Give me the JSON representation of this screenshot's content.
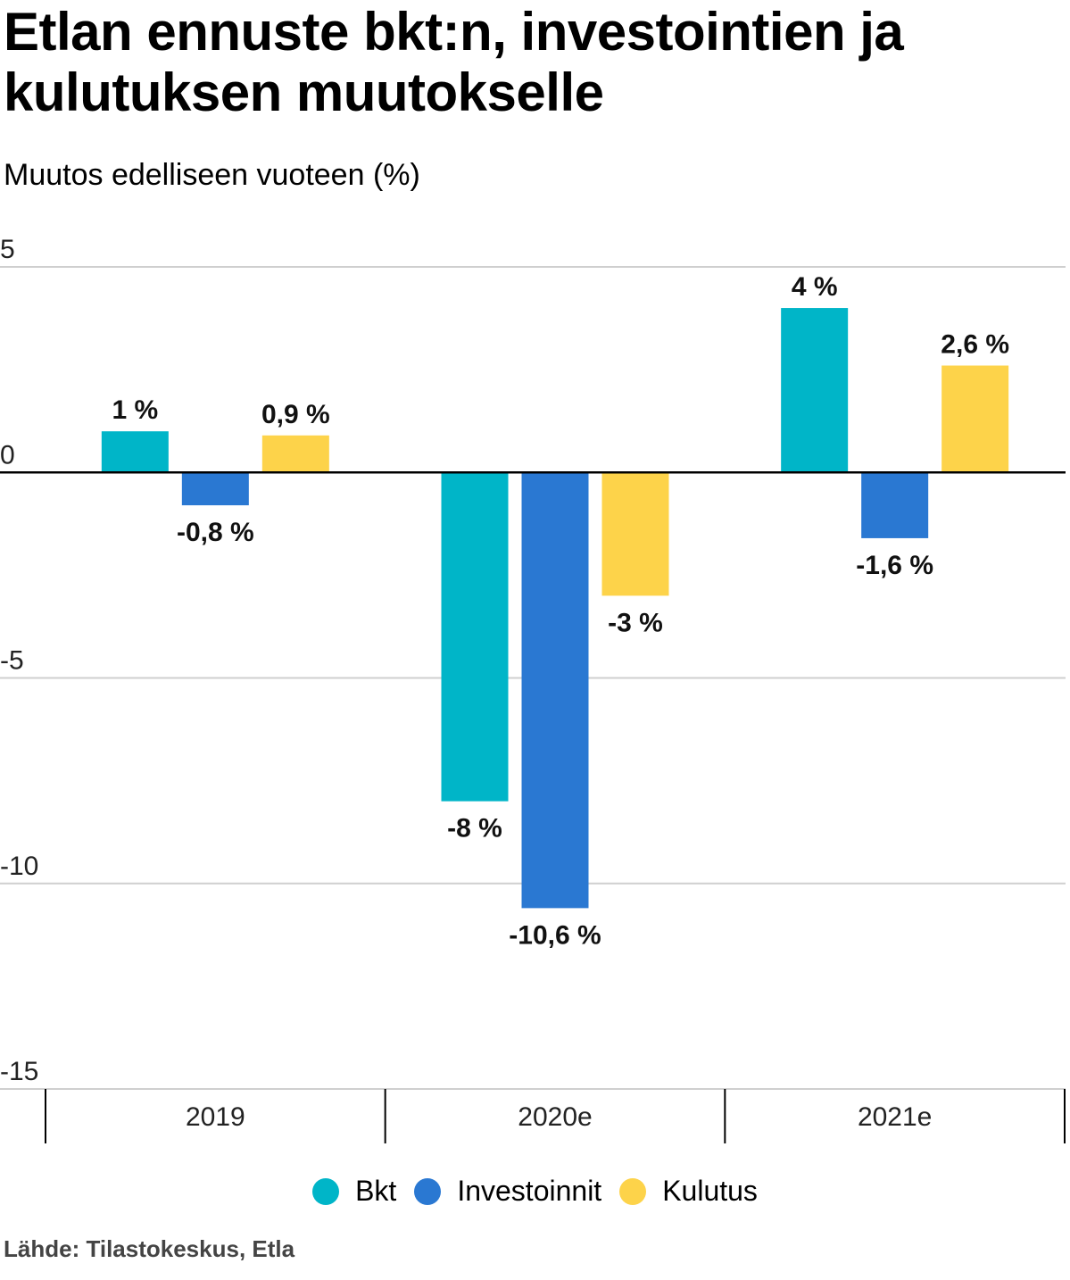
{
  "title": "Etlan ennuste bkt:n, investointien ja kulutuksen muutokselle",
  "subtitle": "Muutos edelliseen vuoteen (%)",
  "source": "Lähde: Tilastokeskus, Etla",
  "chart_data": {
    "type": "bar",
    "title": "Etlan ennuste bkt:n, investointien ja kulutuksen muutokselle",
    "ylabel": "Muutos edelliseen vuoteen (%)",
    "xlabel": "",
    "categories": [
      "2019",
      "2020e",
      "2021e"
    ],
    "ylim": [
      -15,
      5
    ],
    "yticks": [
      5,
      0,
      -5,
      -10,
      -15
    ],
    "ytick_labels": [
      "5",
      "0",
      "-5",
      "-10",
      "-15"
    ],
    "series": [
      {
        "name": "Bkt",
        "color": "#00b5c8",
        "values": [
          1,
          -8,
          4
        ],
        "labels": [
          "1 %",
          "-8 %",
          "4 %"
        ]
      },
      {
        "name": "Investoinnit",
        "color": "#2a78d2",
        "values": [
          -0.8,
          -10.6,
          -1.6
        ],
        "labels": [
          "-0,8 %",
          "-10,6 %",
          "-1,6 %"
        ]
      },
      {
        "name": "Kulutus",
        "color": "#fdd34a",
        "values": [
          0.9,
          -3,
          2.6
        ],
        "labels": [
          "0,9 %",
          "-3 %",
          "2,6 %"
        ]
      }
    ],
    "legend": "bottom-center"
  }
}
